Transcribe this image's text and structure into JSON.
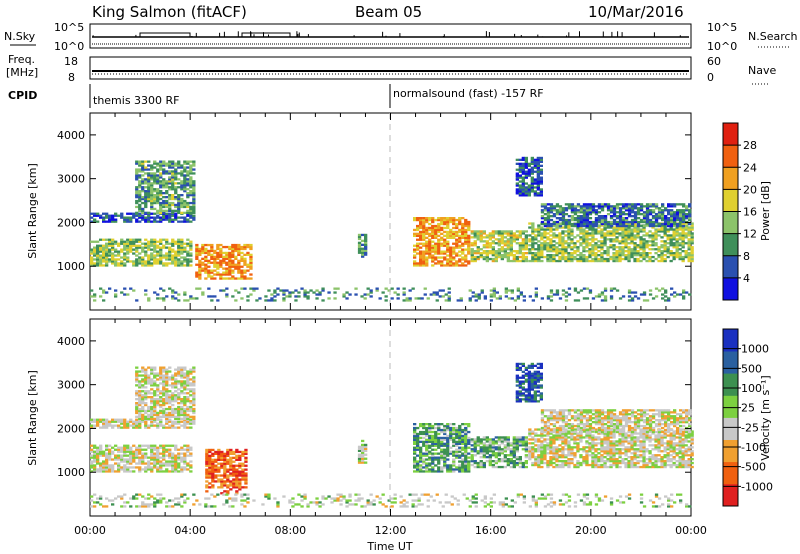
{
  "header": {
    "station": "King Salmon (fitACF)",
    "beam": "Beam 05",
    "date": "10/Mar/2016"
  },
  "strip_labels": {
    "nsky": "N.Sky",
    "nsearch": "N.Search",
    "freq": "Freq.",
    "mhz": "[MHz]",
    "nave": "Nave",
    "cpid": "CPID",
    "nsky_top": "10^5",
    "nsky_bottom": "10^0",
    "freq_top": "18",
    "freq_bottom": "8",
    "nave_top": "60",
    "nave_bottom": "0"
  },
  "cpid_segments": [
    {
      "start_hour": 0,
      "label": "themis 3300 RF"
    },
    {
      "start_hour": 12.0,
      "label": "normalsound (fast) -157 RF"
    }
  ],
  "colors": {
    "power_scale": [
      "#1010e0",
      "#2a50b0",
      "#3f8f5a",
      "#8cc36a",
      "#e0d030",
      "#f0a020",
      "#f06010",
      "#e02010"
    ],
    "velocity_scale": [
      "#e02020",
      "#f06010",
      "#f0a030",
      "#c8c8c8",
      "#7cd040",
      "#3c9050",
      "#2a60a0",
      "#1a30c0"
    ],
    "ground_scatter": "#c8c8c8",
    "noon_line": "#bbbbbb"
  },
  "chart_data": [
    {
      "type": "heatmap",
      "name": "power",
      "x_range_hours": [
        0,
        24
      ],
      "xlim": [
        0,
        24
      ],
      "ylim": [
        0,
        4500
      ],
      "ylabel": "Slant Range [km]",
      "yticks": [
        1000,
        2000,
        3000,
        4000
      ],
      "colorbar": {
        "label": "Power [dB]",
        "ticks": [
          4,
          8,
          12,
          16,
          20,
          24,
          28
        ],
        "range": [
          0,
          32
        ]
      },
      "regions": [
        {
          "t0": 0.0,
          "t1": 4.0,
          "r0": 1000,
          "r1": 1600,
          "level": 0.45
        },
        {
          "t0": 0.0,
          "t1": 4.2,
          "r0": 2000,
          "r1": 2200,
          "level": 0.2
        },
        {
          "t0": 1.8,
          "t1": 4.2,
          "r0": 2200,
          "r1": 3400,
          "level": 0.35
        },
        {
          "t0": 4.2,
          "t1": 6.4,
          "r0": 700,
          "r1": 1500,
          "level": 0.7
        },
        {
          "t0": 10.7,
          "t1": 10.95,
          "r0": 1200,
          "r1": 1700,
          "level": 0.3
        },
        {
          "t0": 12.9,
          "t1": 15.1,
          "r0": 1000,
          "r1": 2100,
          "level": 0.7
        },
        {
          "t0": 15.2,
          "t1": 17.4,
          "r0": 1100,
          "r1": 1800,
          "level": 0.5
        },
        {
          "t0": 17.0,
          "t1": 18.0,
          "r0": 2600,
          "r1": 3500,
          "level": 0.2
        },
        {
          "t0": 17.5,
          "t1": 24.0,
          "r0": 1100,
          "r1": 2000,
          "level": 0.45
        },
        {
          "t0": 18.0,
          "t1": 24.0,
          "r0": 1900,
          "r1": 2400,
          "level": 0.25
        },
        {
          "t0": 0.0,
          "t1": 24.0,
          "r0": 200,
          "r1": 500,
          "level": 0.3
        }
      ]
    },
    {
      "type": "heatmap",
      "name": "velocity",
      "x_range_hours": [
        0,
        24
      ],
      "xlim": [
        0,
        24
      ],
      "ylim": [
        0,
        4500
      ],
      "ylabel": "Slant Range [km]",
      "xlabel": "Time UT",
      "yticks": [
        1000,
        2000,
        3000,
        4000
      ],
      "xticks": [
        "00:00",
        "04:00",
        "08:00",
        "12:00",
        "16:00",
        "20:00",
        "00:00"
      ],
      "colorbar": {
        "label": "Velocity [m s⁻¹]",
        "ticks": [
          "-1000",
          "-500",
          "-100",
          "-25",
          "25",
          "100",
          "500",
          "1000"
        ]
      },
      "regions": [
        {
          "t0": 0.0,
          "t1": 4.0,
          "r0": 1000,
          "r1": 1600,
          "level": 0.45
        },
        {
          "t0": 0.0,
          "t1": 4.2,
          "r0": 2000,
          "r1": 2200,
          "level": 0.45
        },
        {
          "t0": 1.8,
          "t1": 4.2,
          "r0": 2200,
          "r1": 3400,
          "level": 0.45
        },
        {
          "t0": 4.6,
          "t1": 6.2,
          "r0": 500,
          "r1": 1500,
          "level": 0.2
        },
        {
          "t0": 10.7,
          "t1": 10.95,
          "r0": 1200,
          "r1": 1700,
          "level": 0.5
        },
        {
          "t0": 12.9,
          "t1": 15.1,
          "r0": 1000,
          "r1": 2100,
          "level": 0.65
        },
        {
          "t0": 15.2,
          "t1": 17.4,
          "r0": 1100,
          "r1": 1800,
          "level": 0.62
        },
        {
          "t0": 17.0,
          "t1": 18.0,
          "r0": 2600,
          "r1": 3500,
          "level": 0.85
        },
        {
          "t0": 17.5,
          "t1": 24.0,
          "r0": 1100,
          "r1": 2000,
          "level": 0.45
        },
        {
          "t0": 18.0,
          "t1": 24.0,
          "r0": 1900,
          "r1": 2400,
          "level": 0.45
        },
        {
          "t0": 0.0,
          "t1": 24.0,
          "r0": 200,
          "r1": 500,
          "level": 0.5
        }
      ]
    }
  ]
}
